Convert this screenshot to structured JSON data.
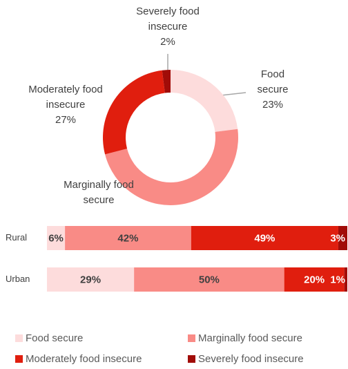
{
  "chart_data": [
    {
      "type": "pie",
      "categories": [
        "Food secure",
        "Marginally food secure",
        "Moderately food insecure",
        "Severely food insecure"
      ],
      "values": [
        23,
        48,
        27,
        2
      ],
      "value_labels": [
        "23%",
        null,
        "27%",
        "2%"
      ],
      "colors": [
        "#fddcdc",
        "#f98b86",
        "#e01e0e",
        "#a10c08"
      ]
    },
    {
      "type": "bar",
      "categories": [
        "Rural",
        "Urban"
      ],
      "xlim": [
        0,
        100
      ],
      "series": [
        {
          "name": "Food secure",
          "color": "#fddcdc",
          "values": [
            6,
            29
          ],
          "value_labels": [
            "6%",
            "29%"
          ]
        },
        {
          "name": "Marginally food secure",
          "color": "#f98b86",
          "values": [
            42,
            50
          ],
          "value_labels": [
            "42%",
            "50%"
          ]
        },
        {
          "name": "Moderately food insecure",
          "color": "#e01e0e",
          "values": [
            49,
            20
          ],
          "value_labels": [
            "49%",
            "20%"
          ]
        },
        {
          "name": "Severely food insecure",
          "color": "#a10c08",
          "values": [
            3,
            1
          ],
          "value_labels": [
            "3%",
            "1%"
          ]
        }
      ]
    }
  ]
}
